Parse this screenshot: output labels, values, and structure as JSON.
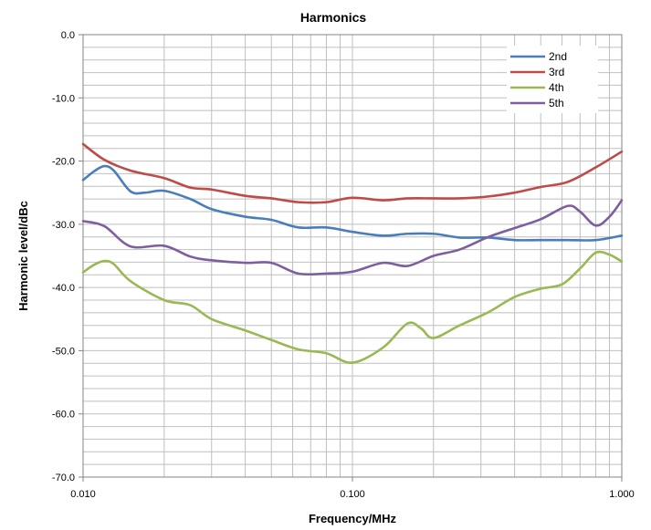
{
  "chart_data": {
    "type": "line",
    "title": "Harmonics",
    "xlabel": "Frequency/MHz",
    "ylabel": "Harmonic level/dBc",
    "xscale": "log",
    "xlim": [
      0.01,
      1.0
    ],
    "ylim": [
      -70,
      0
    ],
    "x_ticks": [
      "0.010",
      "0.100",
      "1.000"
    ],
    "y_ticks": [
      "0.0",
      "-10.0",
      "-20.0",
      "-30.0",
      "-40.0",
      "-50.0",
      "-60.0",
      "-70.0"
    ],
    "grid": true,
    "legend_position": "top-right",
    "series": [
      {
        "name": "2nd",
        "color": "#4a7ebb",
        "points": [
          [
            0.01,
            -23.0
          ],
          [
            0.011,
            -21.6
          ],
          [
            0.012,
            -20.8
          ],
          [
            0.013,
            -21.5
          ],
          [
            0.015,
            -24.8
          ],
          [
            0.017,
            -25.0
          ],
          [
            0.02,
            -24.7
          ],
          [
            0.025,
            -26.0
          ],
          [
            0.03,
            -27.6
          ],
          [
            0.04,
            -28.8
          ],
          [
            0.05,
            -29.3
          ],
          [
            0.063,
            -30.5
          ],
          [
            0.08,
            -30.5
          ],
          [
            0.1,
            -31.2
          ],
          [
            0.13,
            -31.8
          ],
          [
            0.16,
            -31.5
          ],
          [
            0.2,
            -31.5
          ],
          [
            0.25,
            -32.1
          ],
          [
            0.32,
            -32.1
          ],
          [
            0.4,
            -32.5
          ],
          [
            0.5,
            -32.5
          ],
          [
            0.63,
            -32.5
          ],
          [
            0.8,
            -32.5
          ],
          [
            1.0,
            -31.8
          ]
        ]
      },
      {
        "name": "3rd",
        "color": "#be4b48",
        "points": [
          [
            0.01,
            -17.3
          ],
          [
            0.012,
            -19.8
          ],
          [
            0.015,
            -21.5
          ],
          [
            0.02,
            -22.7
          ],
          [
            0.025,
            -24.2
          ],
          [
            0.03,
            -24.5
          ],
          [
            0.04,
            -25.5
          ],
          [
            0.05,
            -25.9
          ],
          [
            0.063,
            -26.5
          ],
          [
            0.08,
            -26.5
          ],
          [
            0.1,
            -25.8
          ],
          [
            0.13,
            -26.2
          ],
          [
            0.16,
            -25.9
          ],
          [
            0.2,
            -25.9
          ],
          [
            0.25,
            -25.9
          ],
          [
            0.32,
            -25.6
          ],
          [
            0.4,
            -25.0
          ],
          [
            0.5,
            -24.1
          ],
          [
            0.63,
            -23.3
          ],
          [
            0.8,
            -21.0
          ],
          [
            1.0,
            -18.5
          ]
        ]
      },
      {
        "name": "4th",
        "color": "#98b954",
        "points": [
          [
            0.01,
            -37.6
          ],
          [
            0.011,
            -36.4
          ],
          [
            0.012,
            -35.8
          ],
          [
            0.013,
            -36.3
          ],
          [
            0.015,
            -39.0
          ],
          [
            0.02,
            -42.0
          ],
          [
            0.025,
            -42.8
          ],
          [
            0.03,
            -45.0
          ],
          [
            0.04,
            -46.8
          ],
          [
            0.05,
            -48.3
          ],
          [
            0.063,
            -49.8
          ],
          [
            0.08,
            -50.4
          ],
          [
            0.1,
            -51.9
          ],
          [
            0.13,
            -49.5
          ],
          [
            0.16,
            -45.7
          ],
          [
            0.18,
            -46.5
          ],
          [
            0.2,
            -48.0
          ],
          [
            0.25,
            -46.0
          ],
          [
            0.32,
            -43.9
          ],
          [
            0.4,
            -41.5
          ],
          [
            0.5,
            -40.2
          ],
          [
            0.6,
            -39.5
          ],
          [
            0.7,
            -37.0
          ],
          [
            0.8,
            -34.5
          ],
          [
            0.9,
            -34.8
          ],
          [
            1.0,
            -35.9
          ]
        ]
      },
      {
        "name": "5th",
        "color": "#7d5fa0",
        "points": [
          [
            0.01,
            -29.5
          ],
          [
            0.012,
            -30.3
          ],
          [
            0.015,
            -33.5
          ],
          [
            0.02,
            -33.4
          ],
          [
            0.025,
            -35.1
          ],
          [
            0.03,
            -35.7
          ],
          [
            0.04,
            -36.1
          ],
          [
            0.05,
            -36.1
          ],
          [
            0.063,
            -37.8
          ],
          [
            0.08,
            -37.8
          ],
          [
            0.1,
            -37.5
          ],
          [
            0.13,
            -36.1
          ],
          [
            0.16,
            -36.6
          ],
          [
            0.2,
            -35.0
          ],
          [
            0.25,
            -34.0
          ],
          [
            0.32,
            -32.0
          ],
          [
            0.4,
            -30.6
          ],
          [
            0.5,
            -29.2
          ],
          [
            0.63,
            -27.1
          ],
          [
            0.7,
            -28.0
          ],
          [
            0.8,
            -30.2
          ],
          [
            0.9,
            -28.8
          ],
          [
            1.0,
            -26.2
          ]
        ]
      }
    ]
  }
}
